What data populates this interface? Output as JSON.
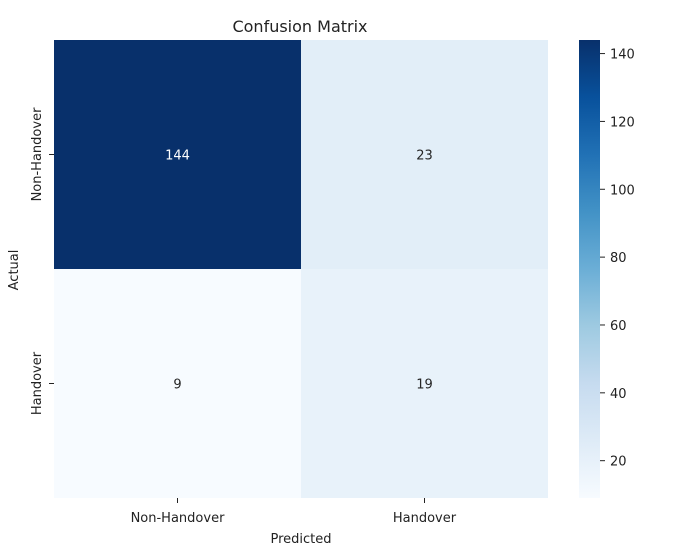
{
  "chart_data": {
    "type": "heatmap",
    "title": "Confusion Matrix",
    "xlabel": "Predicted",
    "ylabel": "Actual",
    "x_categories": [
      "Non-Handover",
      "Handover"
    ],
    "y_categories": [
      "Non-Handover",
      "Handover"
    ],
    "values": [
      [
        144,
        23
      ],
      [
        9,
        19
      ]
    ],
    "colorbar": {
      "colormap": "Blues",
      "range": [
        9,
        144
      ],
      "ticks": [
        20,
        40,
        60,
        80,
        100,
        120,
        140
      ]
    },
    "grid": false,
    "legend": "colorbar-right"
  }
}
